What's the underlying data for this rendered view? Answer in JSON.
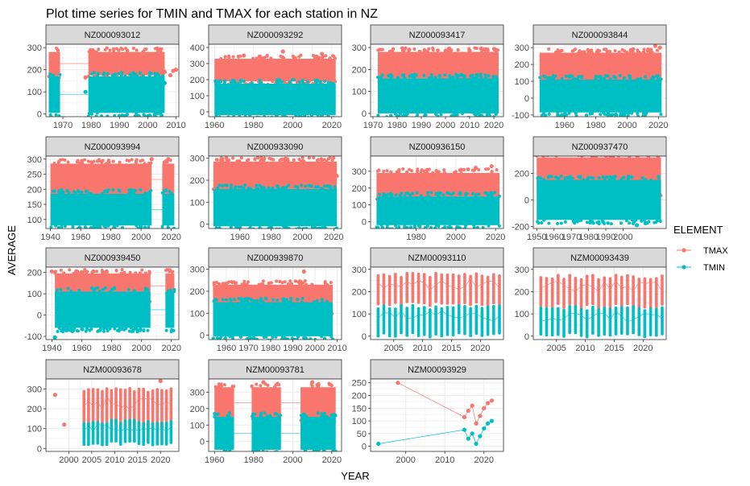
{
  "chart_data": {
    "type": "scatter",
    "title": "Plot time series for TMIN and TMAX for each station in NZ",
    "xlabel": "YEAR",
    "ylabel": "AVERAGE",
    "legend": {
      "title": "ELEMENT",
      "placement": "right",
      "entries": [
        {
          "name": "TMAX",
          "color": "#F8766D"
        },
        {
          "name": "TMIN",
          "color": "#00BFC4"
        }
      ]
    },
    "facet_layout": {
      "ncol": 4,
      "nrow": 4
    },
    "grid": true,
    "panels": [
      {
        "station": "NZ000093012",
        "xlim": [
          1964,
          2011
        ],
        "ylim": [
          -12,
          315
        ],
        "xticks": [
          1970,
          1980,
          1990,
          2000,
          2010
        ],
        "yticks": [
          0,
          100,
          200,
          300
        ],
        "tmax": {
          "bands": [
            [
              1965,
              1969
            ],
            [
              1979,
              2006
            ]
          ],
          "range": [
            175,
            280
          ],
          "points": [
            [
              1967,
              180
            ],
            [
              1978,
              165
            ],
            [
              2006,
              190
            ],
            [
              2008,
              175
            ],
            [
              2009,
              195
            ],
            [
              2010,
              200
            ]
          ]
        },
        "tmin": {
          "bands": [
            [
              1965,
              1969
            ],
            [
              1979,
              2006
            ]
          ],
          "range": [
            5,
            170
          ],
          "points": [
            [
              1967,
              135
            ],
            [
              1978,
              100
            ],
            [
              2006,
              140
            ]
          ]
        }
      },
      {
        "station": "NZ000093292",
        "xlim": [
          1957,
          2025
        ],
        "ylim": [
          -30,
          420
        ],
        "xticks": [
          1960,
          1980,
          2000,
          2020
        ],
        "yticks": [
          0,
          100,
          200,
          300,
          400
        ],
        "tmax": {
          "bands": [
            [
              1960,
              2022
            ]
          ],
          "range": [
            190,
            330
          ],
          "points": [
            [
              1995,
              375
            ],
            [
              2015,
              360
            ],
            [
              1975,
              350
            ]
          ]
        },
        "tmin": {
          "bands": [
            [
              1960,
              2022
            ]
          ],
          "range": [
            -20,
            175
          ],
          "points": []
        }
      },
      {
        "station": "NZ000093417",
        "xlim": [
          1969,
          2024
        ],
        "ylim": [
          -15,
          315
        ],
        "xticks": [
          1970,
          1980,
          1990,
          2000,
          2010,
          2020
        ],
        "yticks": [
          0,
          100,
          200,
          300
        ],
        "tmax": {
          "bands": [
            [
              1972,
              2022
            ]
          ],
          "range": [
            160,
            280
          ],
          "points": [
            [
              1985,
              290
            ],
            [
              2010,
              285
            ]
          ]
        },
        "tmin": {
          "bands": [
            [
              1972,
              2022
            ]
          ],
          "range": [
            0,
            160
          ],
          "points": []
        }
      },
      {
        "station": "NZ000093844",
        "xlim": [
          1940,
          2025
        ],
        "ylim": [
          -110,
          320
        ],
        "xticks": [
          1960,
          1980,
          2000,
          2020
        ],
        "yticks": [
          -100,
          0,
          100,
          200,
          300
        ],
        "tmax": {
          "bands": [
            [
              1944,
              2022
            ]
          ],
          "range": [
            90,
            270
          ],
          "points": [
            [
              2018,
              310
            ],
            [
              2021,
              300
            ]
          ]
        },
        "tmin": {
          "bands": [
            [
              1944,
              2022
            ]
          ],
          "range": [
            -85,
            110
          ],
          "points": []
        }
      },
      {
        "station": "NZ000093994",
        "xlim": [
          1937,
          2025
        ],
        "ylim": [
          70,
          310
        ],
        "xticks": [
          1940,
          1960,
          1980,
          2000,
          2020
        ],
        "yticks": [
          100,
          150,
          200,
          250,
          300
        ],
        "tmax": {
          "bands": [
            [
              1940,
              2007
            ],
            [
              2014,
              2022
            ]
          ],
          "range": [
            180,
            285
          ],
          "points": [
            [
              2007,
              300
            ],
            [
              2018,
              300
            ]
          ]
        },
        "tmin": {
          "bands": [
            [
              1940,
              2007
            ],
            [
              2014,
              2022
            ]
          ],
          "range": [
            80,
            185
          ],
          "points": []
        }
      },
      {
        "station": "NZ000933090",
        "xlim": [
          1940,
          2025
        ],
        "ylim": [
          -20,
          310
        ],
        "xticks": [
          1960,
          1980,
          2000,
          2020
        ],
        "yticks": [
          0,
          100,
          200,
          300
        ],
        "tmax": {
          "bands": [
            [
              1943,
              2022
            ]
          ],
          "range": [
            160,
            285
          ],
          "points": [
            [
              2022,
              220
            ]
          ]
        },
        "tmin": {
          "bands": [
            [
              1943,
              2022
            ]
          ],
          "range": [
            -10,
            160
          ],
          "points": []
        }
      },
      {
        "station": "NZ000936150",
        "xlim": [
          1957,
          2024
        ],
        "ylim": [
          -40,
          390
        ],
        "xticks": [
          1980,
          2000,
          2020
        ],
        "yticks": [
          0,
          100,
          200,
          300
        ],
        "tmax": {
          "bands": [
            [
              1960,
              2022
            ]
          ],
          "range": [
            150,
            290
          ],
          "points": [
            [
              2010,
              320
            ],
            [
              2018,
              330
            ]
          ]
        },
        "tmin": {
          "bands": [
            [
              1960,
              2022
            ]
          ],
          "range": [
            -20,
            150
          ],
          "points": []
        }
      },
      {
        "station": "NZ000937470",
        "xlim": [
          1948,
          2025
        ],
        "ylim": [
          -215,
          330
        ],
        "xticks": [
          1950,
          1960,
          1970,
          1980,
          1990,
          2000
        ],
        "xtick_labels": [
          "1950",
          "1960",
          "1970",
          "1980",
          "1990",
          "2000"
        ],
        "yticks": [
          -200,
          0,
          200
        ],
        "tmax": {
          "bands": [
            [
              1950,
              2022
            ]
          ],
          "range": [
            60,
            320
          ],
          "points": []
        },
        "tmin": {
          "bands": [
            [
              1950,
              2022
            ]
          ],
          "range": [
            -150,
            150
          ],
          "points": [
            [
              2008,
              -190
            ],
            [
              2013,
              -175
            ]
          ]
        }
      },
      {
        "station": "NZ000939450",
        "xlim": [
          1936,
          2025
        ],
        "ylim": [
          -115,
          225
        ],
        "xticks": [
          1940,
          1960,
          1980,
          2000,
          2020
        ],
        "yticks": [
          -100,
          0,
          100,
          200
        ],
        "tmax": {
          "bands": [
            [
              1942,
              2006
            ],
            [
              2016,
              2022
            ]
          ],
          "range": [
            80,
            195
          ],
          "points": [
            [
              1940,
              205
            ],
            [
              1960,
              200
            ]
          ]
        },
        "tmin": {
          "bands": [
            [
              1942,
              2006
            ],
            [
              2016,
              2022
            ]
          ],
          "range": [
            -60,
            110
          ],
          "points": [
            [
              1942,
              -105
            ]
          ]
        }
      },
      {
        "station": "NZ000939870",
        "xlim": [
          1952,
          2012
        ],
        "ylim": [
          -20,
          310
        ],
        "xticks": [
          1960,
          1970,
          1980,
          1990,
          2000,
          2010
        ],
        "yticks": [
          0,
          100,
          200,
          300
        ],
        "tmax": {
          "bands": [
            [
              1954,
              2008
            ]
          ],
          "range": [
            100,
            230
          ],
          "points": [
            [
              1995,
              290
            ]
          ]
        },
        "tmin": {
          "bands": [
            [
              1954,
              2008
            ]
          ],
          "range": [
            -5,
            150
          ],
          "points": []
        }
      },
      {
        "station": "NZM00093110",
        "xlim": [
          2001,
          2024
        ],
        "ylim": [
          -15,
          310
        ],
        "xticks": [
          2005,
          2010,
          2015,
          2020
        ],
        "yticks": [
          0,
          100,
          200,
          300
        ],
        "tmax": {
          "stripes": [
            2002,
            2023
          ],
          "range": [
            140,
            290
          ],
          "points": []
        },
        "tmin": {
          "stripes": [
            2002,
            2023
          ],
          "range": [
            0,
            145
          ],
          "points": []
        }
      },
      {
        "station": "NZM00093439",
        "xlim": [
          2001,
          2024
        ],
        "ylim": [
          -15,
          310
        ],
        "xticks": [
          2005,
          2010,
          2015,
          2020
        ],
        "yticks": [
          0,
          100,
          200,
          300
        ],
        "tmax": {
          "stripes": [
            2002,
            2023
          ],
          "range": [
            130,
            280
          ],
          "points": []
        },
        "tmin": {
          "stripes": [
            2002,
            2023
          ],
          "range": [
            0,
            140
          ],
          "points": []
        }
      },
      {
        "station": "NZM00093678",
        "xlim": [
          1995,
          2024
        ],
        "ylim": [
          -15,
          350
        ],
        "xticks": [
          2000,
          2005,
          2010,
          2015,
          2020
        ],
        "yticks": [
          0,
          100,
          200,
          300
        ],
        "tmax": {
          "stripes": [
            2003,
            2022
          ],
          "range": [
            100,
            310
          ],
          "points": [
            [
              1997,
              270
            ],
            [
              1999,
              120
            ],
            [
              2020,
              340
            ]
          ]
        },
        "tmin": {
          "stripes": [
            2003,
            2022
          ],
          "range": [
            20,
            150
          ],
          "points": []
        }
      },
      {
        "station": "NZM00093781",
        "xlim": [
          1957,
          2025
        ],
        "ylim": [
          -60,
          380
        ],
        "xticks": [
          1960,
          1980,
          2000,
          2020
        ],
        "yticks": [
          0,
          100,
          200,
          300
        ],
        "tmax": {
          "bands": [
            [
              1960,
              1970
            ],
            [
              1979,
              1994
            ],
            [
              2004,
              2022
            ]
          ],
          "range": [
            140,
            330
          ],
          "points": [
            [
              1985,
              360
            ],
            [
              2010,
              360
            ]
          ]
        },
        "tmin": {
          "bands": [
            [
              1960,
              1970
            ],
            [
              1979,
              1994
            ],
            [
              2004,
              2022
            ]
          ],
          "range": [
            -50,
            150
          ],
          "points": []
        }
      },
      {
        "station": "NZM00093929",
        "xlim": [
          1991,
          2025
        ],
        "ylim": [
          -20,
          265
        ],
        "xticks": [
          2000,
          2010,
          2020
        ],
        "yticks": [
          0,
          50,
          100,
          150,
          200,
          250
        ],
        "tmax": {
          "bands": [],
          "range": [
            0,
            0
          ],
          "points": [
            [
              1998,
              250
            ],
            [
              2015,
              115
            ],
            [
              2016,
              140
            ],
            [
              2017,
              160
            ],
            [
              2018,
              90
            ],
            [
              2019,
              120
            ],
            [
              2020,
              150
            ],
            [
              2021,
              170
            ],
            [
              2022,
              180
            ]
          ]
        },
        "tmin": {
          "bands": [],
          "range": [
            0,
            0
          ],
          "points": [
            [
              1993,
              10
            ],
            [
              2015,
              65
            ],
            [
              2016,
              30
            ],
            [
              2017,
              50
            ],
            [
              2018,
              10
            ],
            [
              2019,
              40
            ],
            [
              2020,
              70
            ],
            [
              2021,
              90
            ],
            [
              2022,
              100
            ]
          ]
        }
      }
    ]
  }
}
